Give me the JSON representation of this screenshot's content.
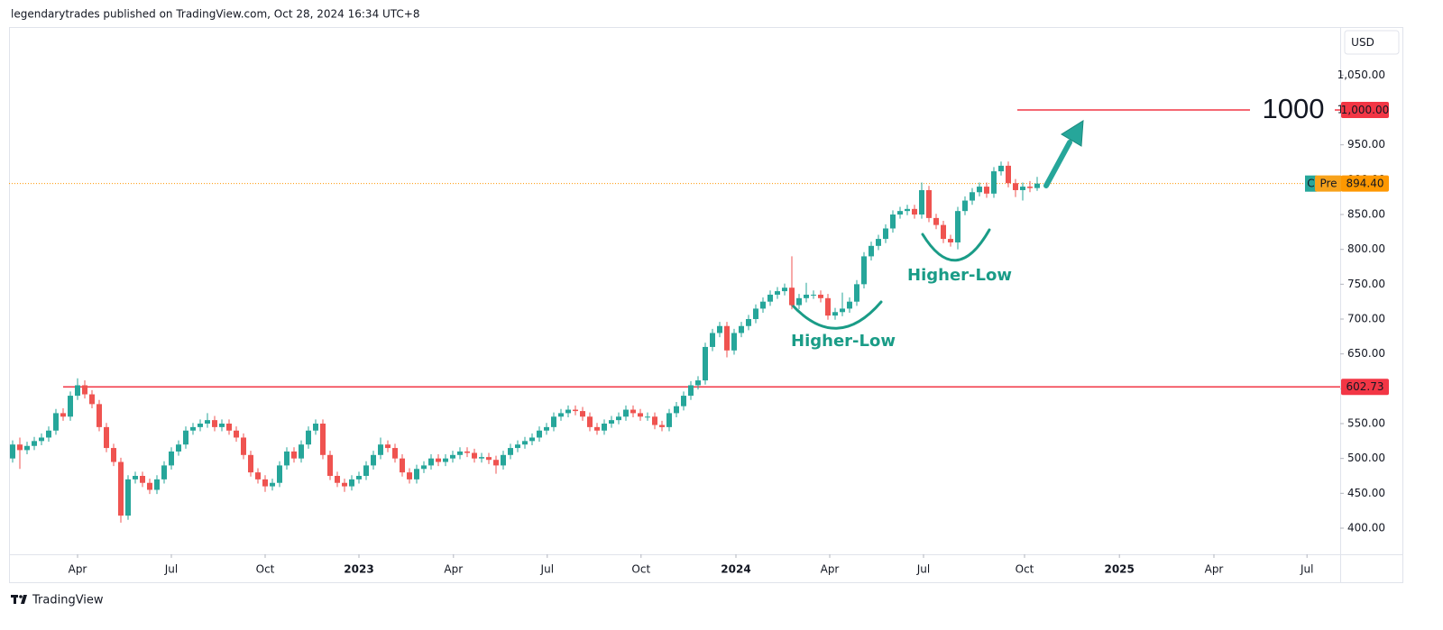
{
  "header": "legendarytrades published on TradingView.com, Oct 28, 2024 16:34 UTC+8",
  "footer": "TradingView",
  "chart_data": {
    "type": "candlestick",
    "currency": "USD",
    "up_color": "#26a69a",
    "down_color": "#ef5350",
    "x": [
      0,
      1,
      2,
      3,
      4,
      5,
      6,
      7,
      8,
      9,
      10,
      11,
      12,
      13,
      14,
      15,
      16,
      17,
      18,
      19,
      20,
      21,
      22,
      23,
      24,
      25,
      26,
      27,
      28,
      29,
      30,
      31,
      32,
      33,
      34,
      35,
      36,
      37,
      38,
      39,
      40,
      41,
      42,
      43,
      44,
      45,
      46,
      47,
      48,
      49,
      50,
      51,
      52,
      53,
      54,
      55,
      56,
      57,
      58,
      59,
      60,
      61,
      62,
      63,
      64,
      65,
      66,
      67,
      68,
      69,
      70,
      71,
      72,
      73,
      74,
      75,
      76,
      77,
      78,
      79,
      80,
      81,
      82,
      83,
      84,
      85,
      86,
      87,
      88,
      89,
      90,
      91,
      92,
      93,
      94,
      95,
      96,
      97,
      98,
      99,
      100,
      101,
      102,
      103,
      104,
      105,
      106,
      107,
      108,
      109,
      110,
      111,
      112,
      113,
      114,
      115,
      116,
      117,
      118,
      119,
      120,
      121,
      122,
      123,
      124,
      125,
      126,
      127,
      128,
      129,
      130,
      131,
      132,
      133,
      134,
      135,
      136,
      137,
      138,
      139,
      140,
      141,
      142
    ],
    "open": [
      500,
      520,
      512,
      518,
      525,
      530,
      540,
      565,
      560,
      590,
      605,
      592,
      578,
      545,
      515,
      495,
      418,
      470,
      475,
      465,
      455,
      470,
      490,
      510,
      520,
      540,
      545,
      550,
      555,
      545,
      550,
      540,
      530,
      505,
      480,
      470,
      460,
      465,
      490,
      510,
      500,
      520,
      540,
      550,
      505,
      475,
      465,
      460,
      470,
      475,
      490,
      505,
      520,
      515,
      500,
      480,
      470,
      485,
      490,
      500,
      495,
      500,
      505,
      510,
      508,
      500,
      502,
      498,
      490,
      505,
      515,
      520,
      525,
      530,
      540,
      545,
      560,
      565,
      570,
      568,
      560,
      545,
      540,
      550,
      555,
      560,
      570,
      565,
      560,
      560,
      548,
      545,
      565,
      575,
      590,
      605,
      612,
      660,
      680,
      690,
      655,
      680,
      690,
      700,
      715,
      725,
      735,
      740,
      745,
      720,
      730,
      735,
      735,
      730,
      705,
      710,
      715,
      725,
      750,
      790,
      805,
      815,
      830,
      850,
      855,
      858,
      850,
      885,
      845,
      835,
      815,
      810,
      855,
      870,
      882,
      890,
      880,
      912,
      920,
      895,
      885,
      890,
      888
    ],
    "high": [
      526,
      530,
      524,
      531,
      536,
      546,
      571,
      572,
      596,
      615,
      612,
      598,
      584,
      551,
      521,
      501,
      476,
      481,
      481,
      471,
      476,
      496,
      516,
      526,
      546,
      551,
      556,
      565,
      561,
      556,
      556,
      546,
      536,
      511,
      486,
      476,
      471,
      496,
      516,
      516,
      526,
      546,
      556,
      556,
      511,
      481,
      471,
      476,
      481,
      496,
      511,
      530,
      526,
      521,
      506,
      486,
      491,
      496,
      506,
      506,
      506,
      511,
      516,
      516,
      514,
      508,
      508,
      504,
      511,
      521,
      526,
      531,
      536,
      546,
      551,
      566,
      571,
      576,
      576,
      574,
      566,
      551,
      556,
      561,
      566,
      576,
      576,
      571,
      566,
      566,
      554,
      571,
      581,
      596,
      611,
      618,
      666,
      686,
      696,
      696,
      686,
      696,
      706,
      721,
      731,
      741,
      746,
      751,
      790,
      736,
      752,
      741,
      741,
      736,
      716,
      738,
      731,
      756,
      796,
      811,
      821,
      836,
      856,
      861,
      864,
      864,
      896,
      891,
      851,
      841,
      821,
      861,
      876,
      888,
      896,
      896,
      918,
      926,
      926,
      901,
      896,
      898,
      904
    ],
    "low": [
      494,
      485,
      506,
      512,
      519,
      524,
      534,
      554,
      554,
      584,
      586,
      572,
      539,
      509,
      489,
      408,
      412,
      464,
      459,
      449,
      449,
      464,
      484,
      504,
      514,
      534,
      539,
      544,
      539,
      539,
      534,
      524,
      499,
      474,
      464,
      452,
      454,
      459,
      484,
      494,
      494,
      514,
      534,
      499,
      469,
      459,
      452,
      454,
      464,
      469,
      484,
      499,
      509,
      494,
      474,
      464,
      464,
      479,
      484,
      489,
      489,
      494,
      499,
      502,
      494,
      494,
      492,
      478,
      484,
      499,
      509,
      514,
      519,
      524,
      534,
      539,
      554,
      559,
      562,
      554,
      539,
      534,
      534,
      544,
      549,
      554,
      559,
      554,
      554,
      542,
      539,
      539,
      559,
      569,
      584,
      599,
      606,
      654,
      674,
      645,
      649,
      674,
      684,
      694,
      709,
      719,
      729,
      734,
      714,
      714,
      724,
      729,
      724,
      699,
      699,
      704,
      709,
      719,
      744,
      784,
      799,
      809,
      824,
      844,
      849,
      844,
      844,
      839,
      829,
      809,
      804,
      800,
      849,
      864,
      876,
      874,
      874,
      906,
      889,
      875,
      870,
      882,
      884
    ],
    "close": [
      520,
      512,
      518,
      525,
      530,
      540,
      565,
      560,
      590,
      605,
      592,
      578,
      545,
      515,
      495,
      418,
      470,
      475,
      465,
      455,
      470,
      490,
      510,
      520,
      540,
      545,
      550,
      555,
      545,
      550,
      540,
      530,
      505,
      480,
      470,
      460,
      465,
      490,
      510,
      500,
      520,
      540,
      550,
      505,
      475,
      465,
      460,
      470,
      475,
      490,
      505,
      520,
      515,
      500,
      480,
      470,
      485,
      490,
      500,
      495,
      500,
      505,
      510,
      508,
      500,
      502,
      498,
      490,
      505,
      515,
      520,
      525,
      530,
      540,
      545,
      560,
      565,
      570,
      568,
      560,
      545,
      540,
      550,
      555,
      560,
      570,
      565,
      560,
      560,
      548,
      545,
      565,
      575,
      590,
      605,
      612,
      660,
      680,
      690,
      655,
      680,
      690,
      700,
      715,
      725,
      735,
      740,
      745,
      720,
      730,
      735,
      735,
      730,
      705,
      710,
      715,
      725,
      750,
      790,
      805,
      815,
      830,
      850,
      855,
      858,
      850,
      885,
      845,
      835,
      815,
      810,
      855,
      870,
      882,
      890,
      880,
      912,
      920,
      895,
      885,
      890,
      888,
      894.4
    ],
    "xlim": [
      -0.5,
      184
    ],
    "xticks": [
      {
        "value": 9,
        "label": "Apr"
      },
      {
        "value": 22,
        "label": "Jul"
      },
      {
        "value": 35,
        "label": "Oct"
      },
      {
        "value": 48,
        "label": "2023"
      },
      {
        "value": 61.1,
        "label": "Apr"
      },
      {
        "value": 74.1,
        "label": "Jul"
      },
      {
        "value": 87.1,
        "label": "Oct"
      },
      {
        "value": 100.25,
        "label": "2024"
      },
      {
        "value": 113.25,
        "label": "Apr"
      },
      {
        "value": 126.25,
        "label": "Jul"
      },
      {
        "value": 140.25,
        "label": "Oct"
      },
      {
        "value": 153.4,
        "label": "2025"
      },
      {
        "value": 166.5,
        "label": "Apr"
      },
      {
        "value": 179.4,
        "label": "Jul"
      }
    ],
    "ylim": [
      362.5,
      1119
    ],
    "yticks": [
      {
        "value": 400,
        "label": "400.00"
      },
      {
        "value": 450,
        "label": "450.00"
      },
      {
        "value": 500,
        "label": "500.00"
      },
      {
        "value": 550,
        "label": "550.00"
      },
      {
        "value": 600,
        "label": "600.00"
      },
      {
        "value": 650,
        "label": "650.00"
      },
      {
        "value": 700,
        "label": "700.00"
      },
      {
        "value": 750,
        "label": "750.00"
      },
      {
        "value": 800,
        "label": "800.00"
      },
      {
        "value": 850,
        "label": "850.00"
      },
      {
        "value": 900,
        "label": "900.00"
      },
      {
        "value": 950,
        "label": "950.00"
      },
      {
        "value": 1000,
        "label": "1,000.00"
      },
      {
        "value": 1050,
        "label": "1,050.00"
      }
    ],
    "levels": [
      {
        "value": 602.73,
        "label": "602.73",
        "color": "#f23645"
      },
      {
        "value": 1000,
        "label": "1,000.00",
        "color": "#f23645",
        "text": "1000"
      }
    ],
    "last_price": {
      "value": 894.4,
      "label": "894.40",
      "session": "Pre",
      "symbol": "C",
      "color": "#ff9800"
    },
    "annotations": [
      "Higher-Low",
      "Higher-Low"
    ]
  }
}
